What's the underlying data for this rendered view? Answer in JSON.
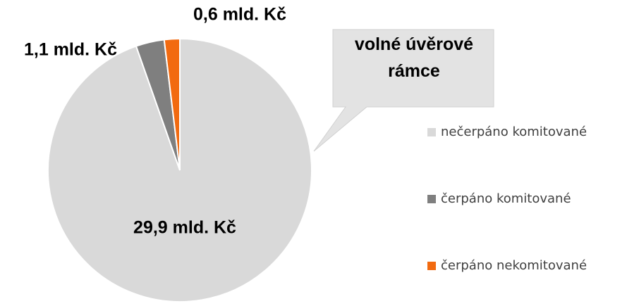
{
  "chart_data": {
    "type": "pie",
    "categories": [
      "nečerpáno komitované",
      "čerpáno komitované",
      "čerpáno nekomitované"
    ],
    "values": [
      29.9,
      1.1,
      0.6
    ],
    "value_labels": [
      "29,9 mld. Kč",
      "1,1 mld. Kč",
      "0,6 mld. Kč"
    ],
    "colors": [
      "#d9d9d9",
      "#7f7f7f",
      "#f26a10"
    ],
    "annotation": "volné úvěrové rámce",
    "legend": "right"
  }
}
